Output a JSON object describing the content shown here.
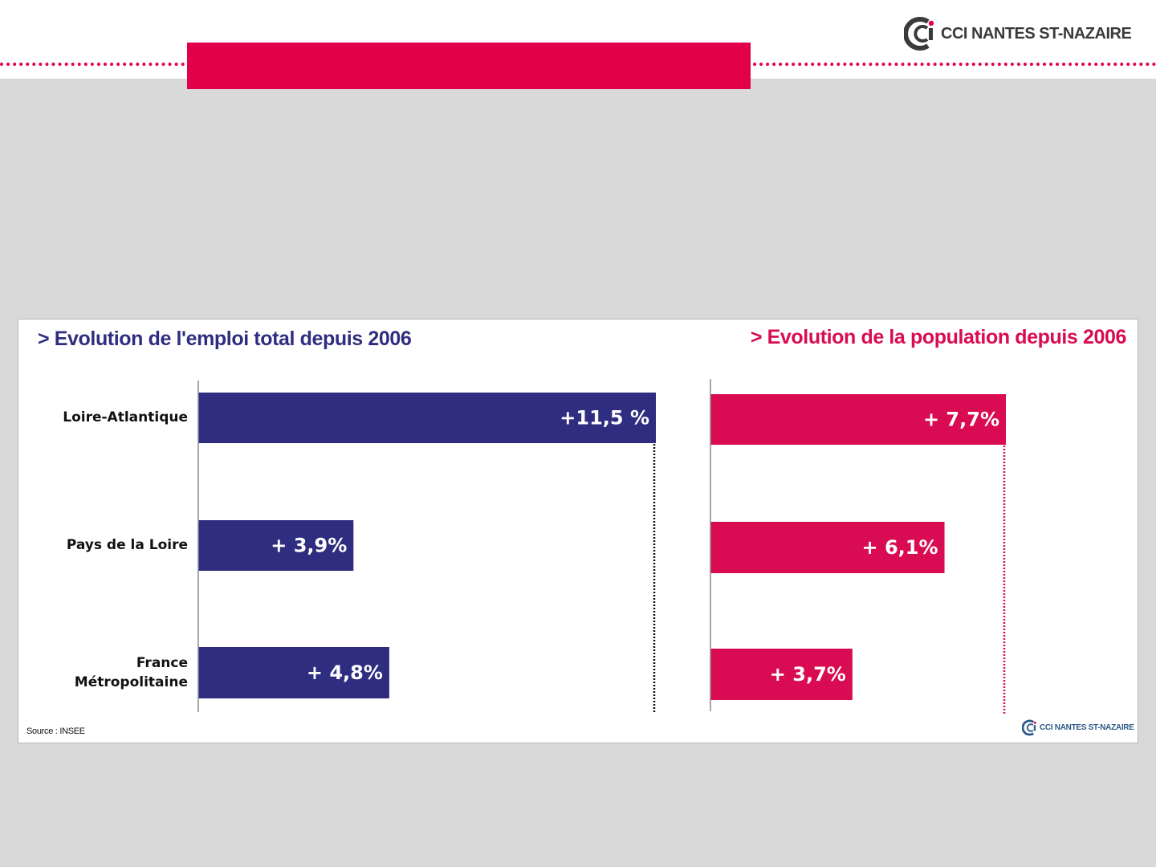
{
  "header": {
    "logo_text": "CCI NANTES ST-NAZAIRE",
    "accent_color": "#e2004a"
  },
  "chart_data": [
    {
      "type": "bar",
      "orientation": "horizontal",
      "title": "> Evolution de l'emploi total depuis 2006",
      "categories": [
        "Loire-Atlantique",
        "Pays de la Loire",
        "France Métropolitaine"
      ],
      "values": [
        11.5,
        3.9,
        4.8
      ],
      "data_labels": [
        "+11,5 %",
        "+ 3,9%",
        "+ 4,8%"
      ],
      "xlim": [
        0,
        11.5
      ],
      "color": "#2e2d80",
      "grid": false
    },
    {
      "type": "bar",
      "orientation": "horizontal",
      "title": "> Evolution de la population depuis 2006",
      "categories": [
        "Loire-Atlantique",
        "Pays de la Loire",
        "France Métropolitaine"
      ],
      "values": [
        7.7,
        6.1,
        3.7
      ],
      "data_labels": [
        "+ 7,7%",
        "+ 6,1%",
        "+ 3,7%"
      ],
      "xlim": [
        0,
        7.7
      ],
      "color": "#d90b52",
      "grid": false
    }
  ],
  "categories_display": [
    "Loire-Atlantique",
    "Pays de la Loire",
    "France",
    "Métropolitaine"
  ],
  "source": "Source : INSEE",
  "footer_logo_text": "CCI NANTES ST-NAZAIRE"
}
